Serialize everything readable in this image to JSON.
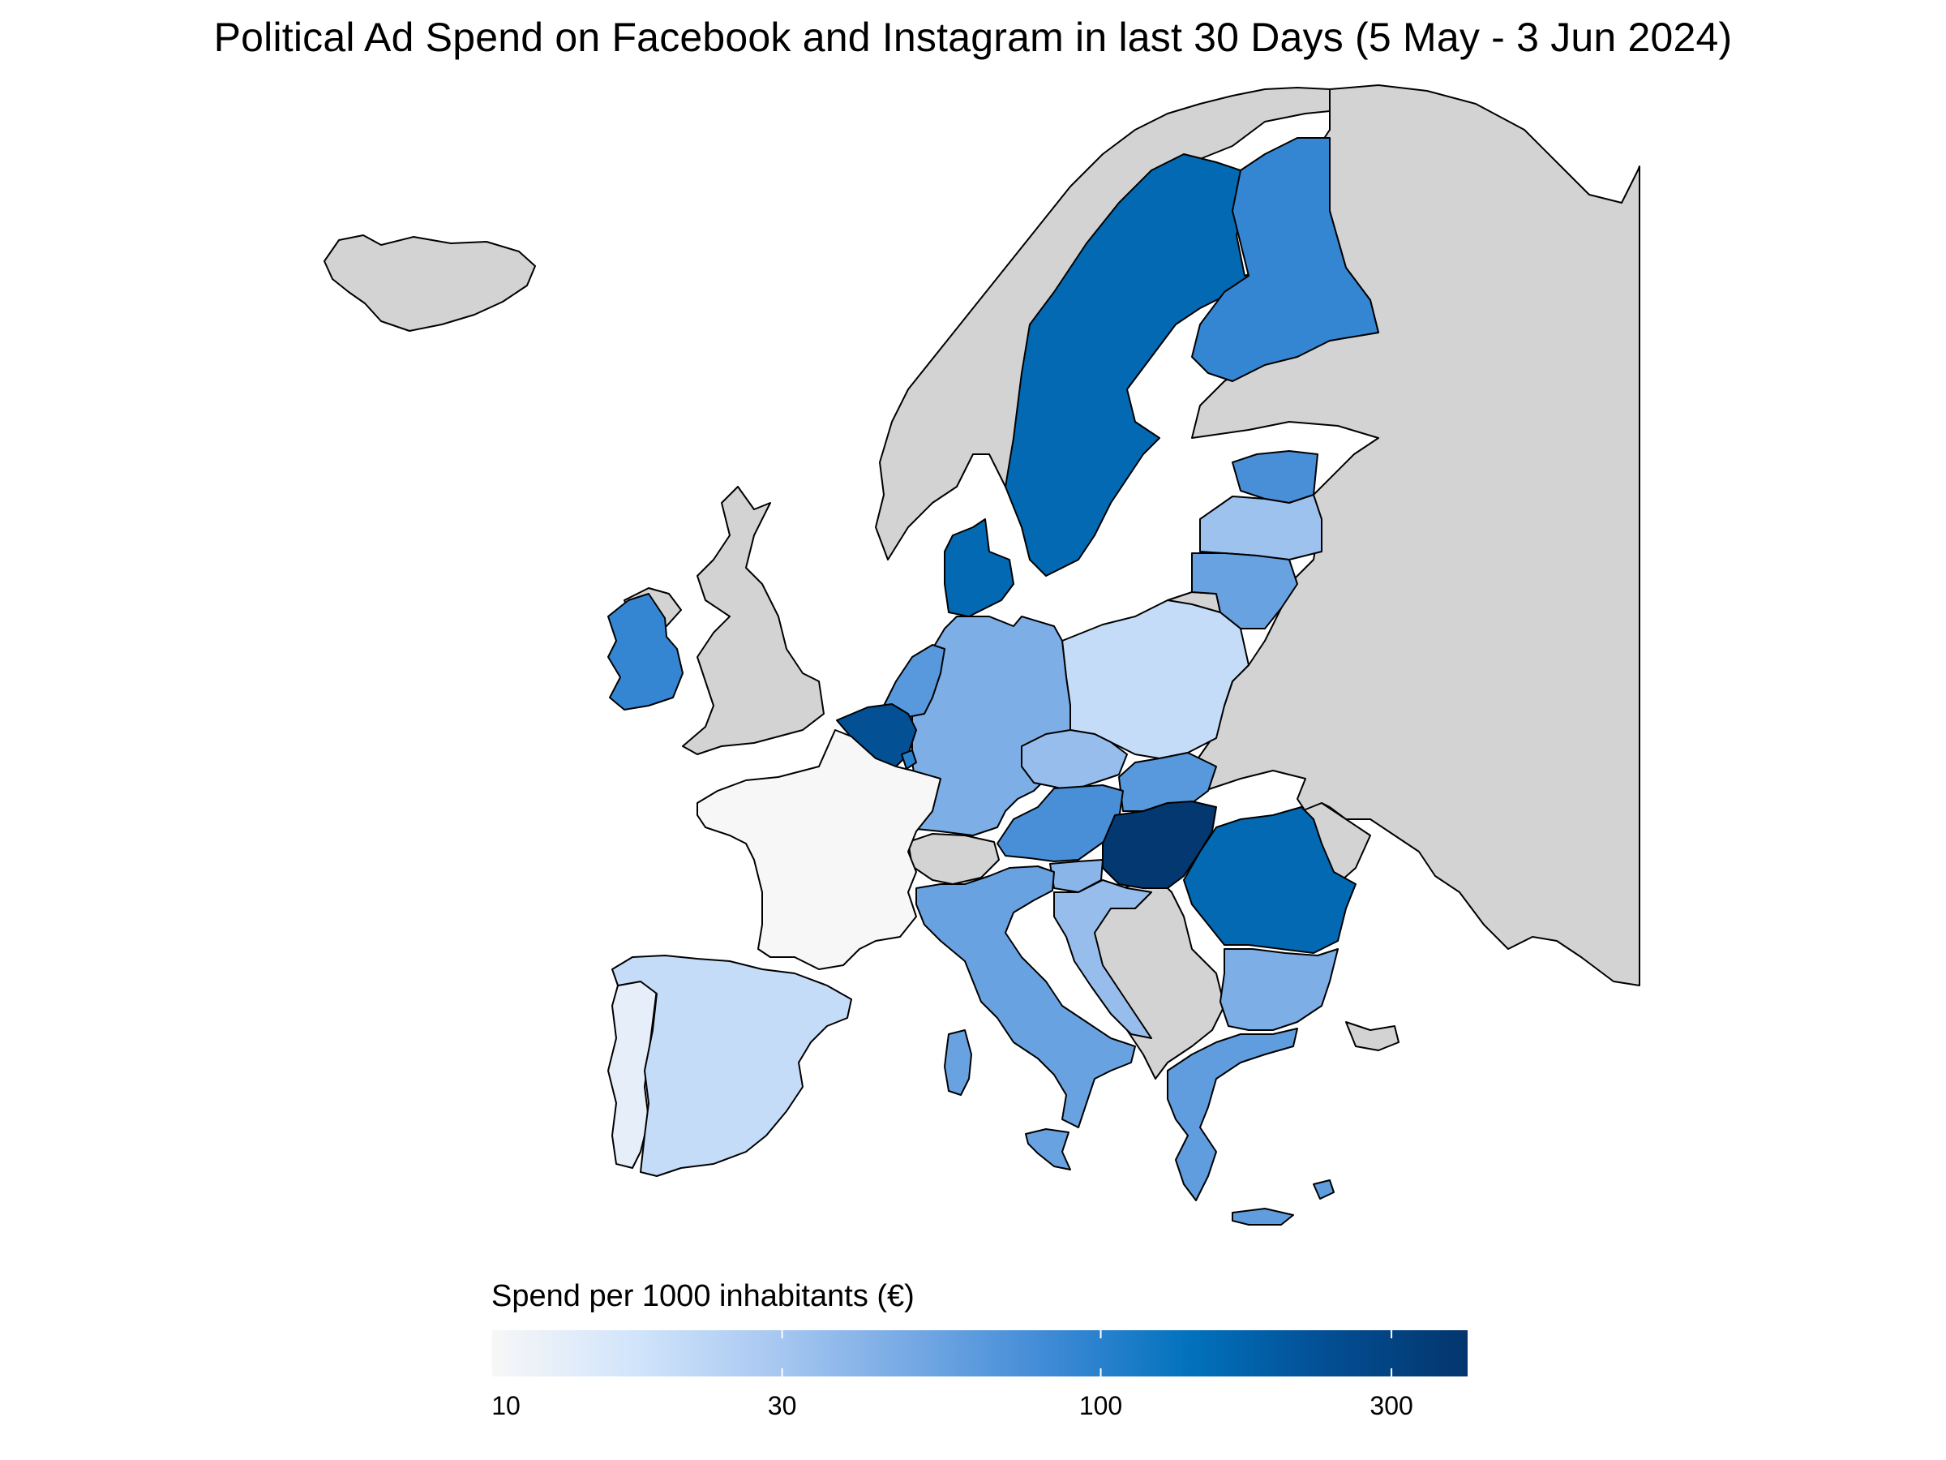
{
  "title": "Political Ad Spend on Facebook and Instagram in last 30 Days (5 May - 3 Jun 2024)",
  "legend": {
    "title": "Spend per 1000 inhabitants (€)",
    "scale": "log10",
    "domain": [
      10,
      400
    ],
    "ticks": [
      {
        "value": 10,
        "label": "10"
      },
      {
        "value": 30,
        "label": "30"
      },
      {
        "value": 100,
        "label": "100"
      },
      {
        "value": 300,
        "label": "300"
      }
    ],
    "color_stops": [
      "#f7f7f7",
      "#d2e5fb",
      "#a9c9f1",
      "#76a9e4",
      "#3f8ad6",
      "#0272bd",
      "#034e93",
      "#03366d"
    ],
    "no_data_color": "#d3d3d3"
  },
  "map_data": {
    "regions": [
      {
        "id": "fr",
        "name": "France",
        "value": 10
      },
      {
        "id": "pt",
        "name": "Portugal",
        "value": 13
      },
      {
        "id": "es",
        "name": "Spain",
        "value": 20
      },
      {
        "id": "pl",
        "name": "Poland",
        "value": 20
      },
      {
        "id": "de",
        "name": "Germany",
        "value": 45
      },
      {
        "id": "cz",
        "name": "Czechia",
        "value": 35
      },
      {
        "id": "lt",
        "name": "Lithuania",
        "value": 55
      },
      {
        "id": "lv",
        "name": "Latvia",
        "value": 32
      },
      {
        "id": "ee",
        "name": "Estonia",
        "value": 75
      },
      {
        "id": "sk",
        "name": "Slovakia",
        "value": 65
      },
      {
        "id": "at",
        "name": "Austria",
        "value": 75
      },
      {
        "id": "it",
        "name": "Italy",
        "value": 55
      },
      {
        "id": "si",
        "name": "Slovenia",
        "value": 40
      },
      {
        "id": "hr",
        "name": "Croatia",
        "value": 35
      },
      {
        "id": "bg",
        "name": "Bulgaria",
        "value": 45
      },
      {
        "id": "gr",
        "name": "Greece",
        "value": 60
      },
      {
        "id": "cy",
        "name": "Cyprus",
        "value": 60
      },
      {
        "id": "nl",
        "name": "Netherlands",
        "value": 65
      },
      {
        "id": "ie",
        "name": "Ireland",
        "value": 90
      },
      {
        "id": "fi",
        "name": "Finland",
        "value": 90
      },
      {
        "id": "se",
        "name": "Sweden",
        "value": 160
      },
      {
        "id": "dk",
        "name": "Denmark",
        "value": 160
      },
      {
        "id": "ro",
        "name": "Romania",
        "value": 160
      },
      {
        "id": "lu",
        "name": "Luxembourg",
        "value": 100
      },
      {
        "id": "be",
        "name": "Belgium",
        "value": 230
      },
      {
        "id": "hu",
        "name": "Hungary",
        "value": 380
      }
    ]
  }
}
